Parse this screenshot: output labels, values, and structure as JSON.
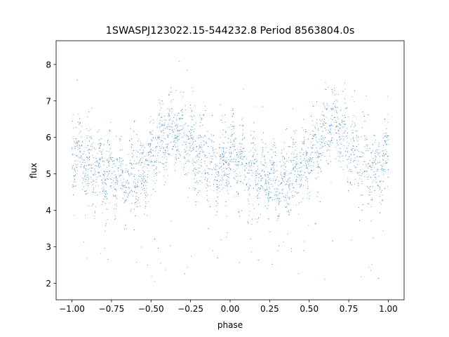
{
  "chart_data": {
    "type": "scatter",
    "title": "1SWASPJ123022.15-544232.8 Period 8563804.0s",
    "xlabel": "phase",
    "ylabel": "flux",
    "xlim": [
      -1.1,
      1.1
    ],
    "ylim": [
      1.55,
      8.65
    ],
    "x_ticks": [
      -1.0,
      -0.75,
      -0.5,
      -0.25,
      0.0,
      0.25,
      0.5,
      0.75,
      1.0
    ],
    "x_tick_labels": [
      "−1.00",
      "−0.75",
      "−0.50",
      "−0.25",
      "0.00",
      "0.25",
      "0.50",
      "0.75",
      "1.00"
    ],
    "y_ticks": [
      2,
      3,
      4,
      5,
      6,
      7,
      8
    ],
    "y_tick_labels": [
      "2",
      "3",
      "4",
      "5",
      "6",
      "7",
      "8"
    ],
    "grid": false,
    "legend": "none",
    "series": [
      {
        "color": "#1f77b4",
        "marker": "dot",
        "trend_x": [
          0.0,
          0.05,
          0.1,
          0.15,
          0.2,
          0.25,
          0.3,
          0.35,
          0.4,
          0.45,
          0.5,
          0.55,
          0.6,
          0.65,
          0.7,
          0.75,
          0.8,
          0.85,
          0.9,
          0.95,
          1.0
        ],
        "trend_y": [
          5.6,
          5.4,
          5.2,
          5.1,
          5.0,
          4.9,
          4.85,
          4.9,
          5.0,
          5.1,
          5.4,
          5.8,
          6.1,
          6.3,
          6.2,
          5.8,
          5.5,
          5.3,
          5.1,
          5.1,
          5.5
        ],
        "scatter_sd": 0.6,
        "outlier_y_range": [
          1.9,
          4.0
        ]
      }
    ]
  }
}
